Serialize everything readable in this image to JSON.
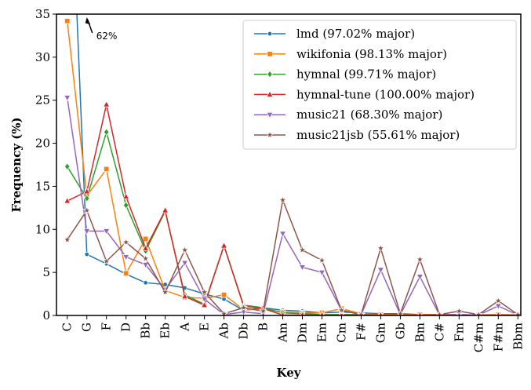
{
  "chart_data": {
    "type": "line",
    "xlabel": "Key",
    "ylabel": "Frequency (%)",
    "ylim": [
      0,
      35
    ],
    "yticks": [
      0,
      5,
      10,
      15,
      20,
      25,
      30,
      35
    ],
    "grid": false,
    "legend_position": "top-right",
    "categories": [
      "C",
      "G",
      "F",
      "D",
      "Bb",
      "Eb",
      "A",
      "E",
      "Ab",
      "Db",
      "B",
      "Am",
      "Dm",
      "Em",
      "Cm",
      "F#",
      "Gm",
      "Gb",
      "Bm",
      "C#",
      "Fm",
      "C#m",
      "F#m",
      "Bbm"
    ],
    "annotation": {
      "text": "62%",
      "category": "G",
      "series": "lmd",
      "value": 62
    },
    "series": [
      {
        "name": "lmd (97.02% major)",
        "color": "#1f77b4",
        "marker": "circle",
        "values": [
          62,
          7.1,
          6.0,
          4.8,
          3.8,
          3.6,
          3.2,
          2.5,
          1.9,
          0.6,
          0.9,
          0.6,
          0.5,
          0.3,
          0.4,
          0.3,
          0.2,
          0.2,
          0.1,
          0.1,
          0.1,
          0.05,
          0.05,
          0.05
        ]
      },
      {
        "name": "wikifonia (98.13% major)",
        "color": "#ff7f0e",
        "marker": "square",
        "values": [
          34.2,
          13.9,
          17.0,
          4.9,
          8.9,
          2.9,
          2.1,
          2.0,
          2.4,
          0.7,
          0.7,
          0.4,
          0.3,
          0.3,
          0.8,
          0.2,
          0.1,
          0.1,
          0.1,
          0.1,
          0.1,
          0.05,
          0.1,
          0.05
        ]
      },
      {
        "name": "hymnal (99.71% major)",
        "color": "#2ca02c",
        "marker": "diamond",
        "values": [
          17.3,
          13.6,
          21.3,
          12.8,
          7.5,
          12.1,
          2.4,
          1.3,
          8.1,
          1.2,
          0.9,
          0.3,
          0.2,
          0.1,
          0.1,
          0.1,
          0.05,
          0.05,
          0.05,
          0.05,
          0.05,
          0.05,
          0.05,
          0.05
        ]
      },
      {
        "name": "hymnal-tune (100.00% major)",
        "color": "#d62728",
        "marker": "triangle-up",
        "values": [
          13.3,
          14.4,
          24.5,
          13.8,
          7.8,
          12.2,
          2.2,
          1.2,
          8.1,
          1.1,
          0.8,
          0.05,
          0.05,
          0.05,
          0.05,
          0.05,
          0.05,
          0.05,
          0.05,
          0.05,
          0.05,
          0.05,
          0.05,
          0.05
        ]
      },
      {
        "name": "music21 (68.30% major)",
        "color": "#9467bd",
        "marker": "triangle-down",
        "values": [
          25.3,
          9.8,
          9.8,
          6.8,
          5.9,
          3.0,
          6.1,
          1.9,
          0.1,
          0.4,
          0.2,
          9.5,
          5.6,
          5.0,
          0.6,
          0.1,
          5.3,
          0.1,
          4.5,
          0.05,
          0.1,
          0.05,
          1.1,
          0.05
        ]
      },
      {
        "name": "music21jsb (55.61% major)",
        "color": "#8c564b",
        "marker": "star",
        "values": [
          8.8,
          12.2,
          6.3,
          8.5,
          6.6,
          2.7,
          7.6,
          2.7,
          0.2,
          0.9,
          0.5,
          13.4,
          7.6,
          6.4,
          0.6,
          0.1,
          7.8,
          0.2,
          6.5,
          0.1,
          0.5,
          0.1,
          1.7,
          0.1
        ]
      }
    ]
  }
}
